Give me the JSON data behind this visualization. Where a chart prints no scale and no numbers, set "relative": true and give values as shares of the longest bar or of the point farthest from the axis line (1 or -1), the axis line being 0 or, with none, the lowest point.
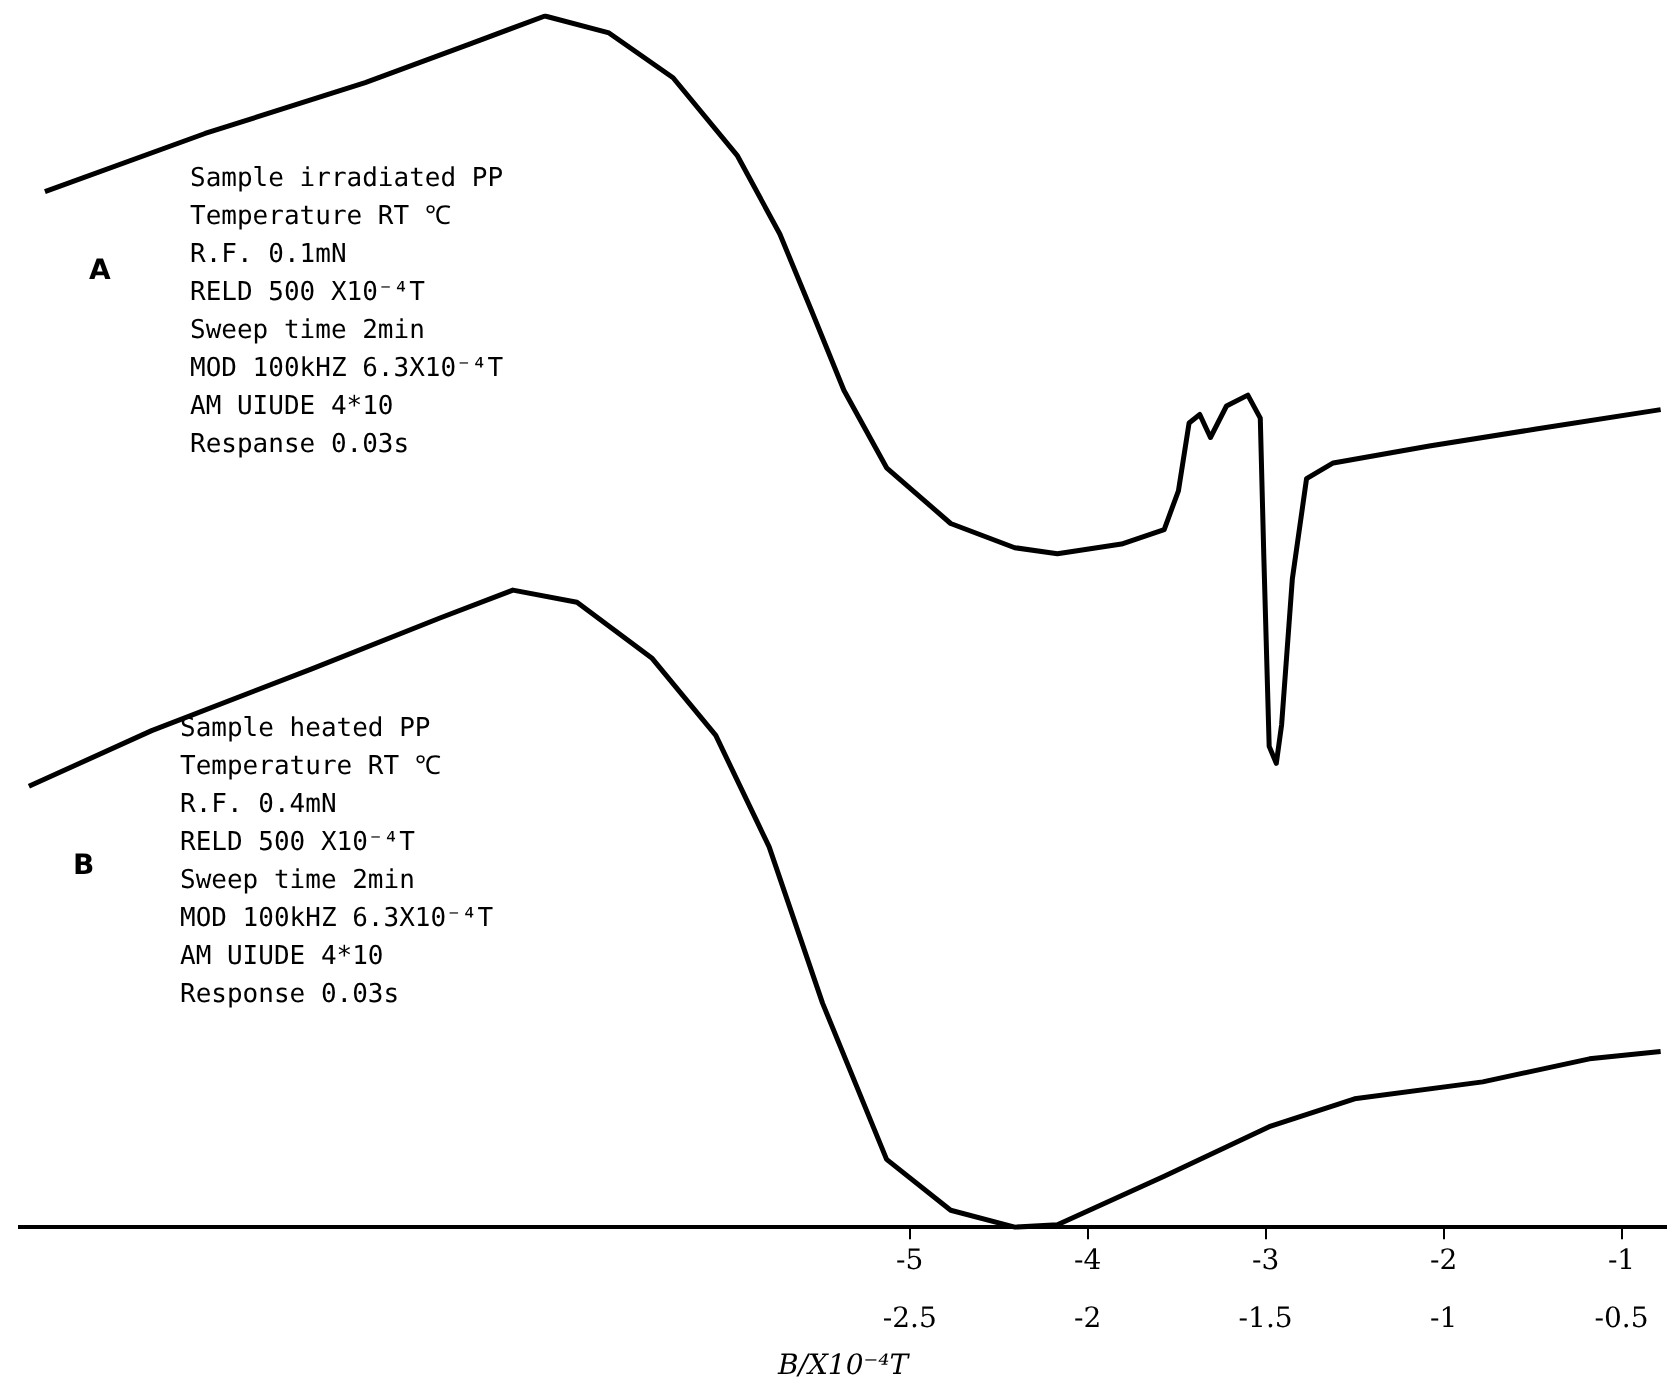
{
  "chart_data": {
    "type": "line",
    "relative": true,
    "xlabel": "B/X10⁻⁴T",
    "xlim": [
      -10,
      -0.75
    ],
    "xticks": [
      -5,
      -4,
      -3,
      -2,
      -1
    ],
    "x2lim": [
      -5,
      -0.375
    ],
    "x2ticks": [
      -2.5,
      -2,
      -1.5,
      -1,
      -0.5
    ],
    "grid": false,
    "legend": false,
    "marker": "none",
    "line_style": "solid",
    "series": [
      {
        "name": "A",
        "color": "#000000",
        "x": [
          -9.86,
          -8.96,
          -8.06,
          -7.47,
          -7.05,
          -6.69,
          -6.33,
          -5.97,
          -5.73,
          -5.55,
          -5.37,
          -5.13,
          -4.77,
          -4.41,
          -4.17,
          -3.81,
          -3.57,
          -3.49,
          -3.43,
          -3.37,
          -3.31,
          -3.22,
          -3.1,
          -3.03,
          -3.01,
          -2.98,
          -2.94,
          -2.91,
          -2.85,
          -2.77,
          -2.62,
          -2.08,
          -1.48,
          -0.78
        ],
        "values": [
          0.855,
          0.903,
          0.945,
          0.977,
          1.0,
          0.986,
          0.949,
          0.885,
          0.82,
          0.756,
          0.691,
          0.627,
          0.581,
          0.561,
          0.556,
          0.564,
          0.576,
          0.608,
          0.664,
          0.671,
          0.652,
          0.678,
          0.687,
          0.668,
          0.553,
          0.397,
          0.383,
          0.415,
          0.535,
          0.618,
          0.631,
          0.645,
          0.659,
          0.675
        ]
      },
      {
        "name": "B",
        "color": "#000000",
        "x": [
          -9.95,
          -9.26,
          -8.36,
          -7.64,
          -7.23,
          -6.87,
          -6.45,
          -6.09,
          -5.79,
          -5.49,
          -5.13,
          -4.77,
          -4.41,
          -4.17,
          -3.57,
          -2.98,
          -2.5,
          -1.78,
          -1.18,
          -0.78
        ],
        "values": [
          0.364,
          0.41,
          0.461,
          0.503,
          0.526,
          0.516,
          0.47,
          0.406,
          0.314,
          0.185,
          0.056,
          0.014,
          0.0,
          0.002,
          0.042,
          0.083,
          0.106,
          0.12,
          0.139,
          0.145
        ]
      }
    ],
    "annotations": [
      "Sample irradiated PP",
      "Temperature RT ℃",
      "R.F. 0.1mN",
      "RELD 500 X10⁻⁴T",
      "Sweep time 2min",
      "MOD 100kHZ 6.3X10⁻⁴T",
      "AM UIUDE 4*10",
      "Respanse 0.03s",
      "Sample heated PP",
      "Temperature RT ℃",
      "R.F. 0.4mN",
      "RELD 500 X10⁻⁴T",
      "Sweep time 2min",
      "MOD 100kHZ 6.3X10⁻⁴T",
      "AM UIUDE 4*10",
      "Response 0.03s"
    ]
  }
}
